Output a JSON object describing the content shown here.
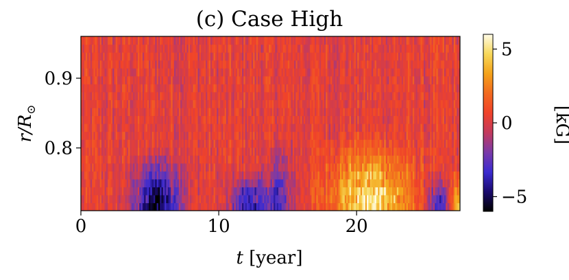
{
  "chart_data": {
    "type": "heatmap",
    "title": "(c) Case High",
    "xlabel_var": "t",
    "xlabel_unit": "[year]",
    "ylabel_main": "r/R",
    "ylabel_sub": "⊙",
    "xlim": [
      0,
      27.5
    ],
    "ylim": [
      0.71,
      0.96
    ],
    "xticks": [
      {
        "value": 0,
        "label": "0"
      },
      {
        "value": 10,
        "label": "10"
      },
      {
        "value": 20,
        "label": "20"
      }
    ],
    "yticks": [
      {
        "value": 0.8,
        "label": "0.8"
      },
      {
        "value": 0.9,
        "label": "0.9"
      }
    ],
    "colorbar": {
      "label": "[kG]",
      "range": [
        -6,
        6
      ],
      "ticks": [
        {
          "value": 5,
          "label": "5"
        },
        {
          "value": 0,
          "label": "0"
        },
        {
          "value": -5,
          "label": "−5"
        }
      ],
      "colormap": [
        "#000000",
        "#1a0a6e",
        "#3b2bd0",
        "#7a3aa8",
        "#c23a5e",
        "#f0422a",
        "#f26a1f",
        "#f4a21a",
        "#f7d85a",
        "#fffce8"
      ]
    },
    "features": [
      {
        "t_center": 5.5,
        "t_width": 1.6,
        "r_top": 0.78,
        "value": -5.5
      },
      {
        "t_center": 12.2,
        "t_width": 1.4,
        "r_top": 0.76,
        "value": -4.0
      },
      {
        "t_center": 14.4,
        "t_width": 1.0,
        "r_top": 0.8,
        "value": -3.0
      },
      {
        "t_center": 21.0,
        "t_width": 3.0,
        "r_top": 0.8,
        "value": 4.5
      },
      {
        "t_center": 26.0,
        "t_width": 0.8,
        "r_top": 0.76,
        "value": -4.0
      },
      {
        "t_center": 27.3,
        "t_width": 0.5,
        "r_top": 0.76,
        "value": 4.0
      }
    ]
  }
}
